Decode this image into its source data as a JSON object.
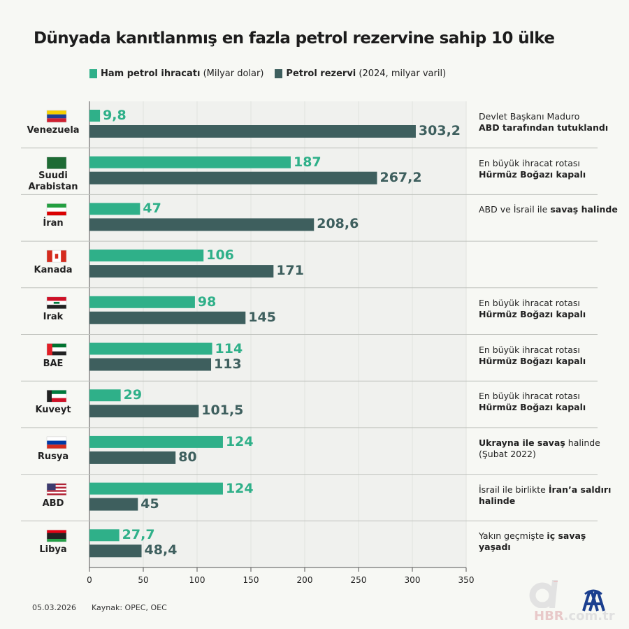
{
  "title": "Dünyada kanıtlanmış en fazla petrol rezervine sahip 10 ülke",
  "legend": [
    {
      "bold": "Ham petrol ihracatı",
      "rest": " (Milyar dolar)",
      "color": "#2fb089"
    },
    {
      "bold": "Petrol rezervi",
      "rest": " (2024, milyar varil)",
      "color": "#3e5f5e"
    }
  ],
  "chart_data": {
    "type": "bar",
    "orientation": "horizontal",
    "categories": [
      "Venezuela",
      "Suudi Arabistan",
      "İran",
      "Kanada",
      "Irak",
      "BAE",
      "Kuveyt",
      "Rusya",
      "ABD",
      "Libya"
    ],
    "series": [
      {
        "name": "Ham petrol ihracatı (Milyar dolar)",
        "color": "#2fb089",
        "values": [
          9.8,
          187,
          47,
          106,
          98,
          114,
          29,
          124,
          124,
          27.7
        ],
        "labels": [
          "9,8",
          "187",
          "47",
          "106",
          "98",
          "114",
          "29",
          "124",
          "124",
          "27,7"
        ]
      },
      {
        "name": "Petrol rezervi (2024, milyar varil)",
        "color": "#3e5f5e",
        "values": [
          303.2,
          267.2,
          208.6,
          171,
          145,
          113,
          101.5,
          80,
          45,
          48.4
        ],
        "labels": [
          "303,2",
          "267,2",
          "208,6",
          "171",
          "145",
          "113",
          "101,5",
          "80",
          "45",
          "48,4"
        ]
      }
    ],
    "xlim": [
      0,
      350
    ],
    "xticks": [
      "0",
      "50",
      "100",
      "150",
      "200",
      "250",
      "300",
      "350"
    ],
    "grid": true,
    "legend_position": "top"
  },
  "flags": [
    "venezuela-flag",
    "saudi-arabia-flag",
    "iran-flag",
    "canada-flag",
    "iraq-flag",
    "uae-flag",
    "kuwait-flag",
    "russia-flag",
    "usa-flag",
    "libya-flag"
  ],
  "notes": [
    [
      {
        "t": "Devlet Başkanı Maduro",
        "b": false
      },
      {
        "t": "\n",
        "b": false
      },
      {
        "t": "ABD tarafından tutuklandı",
        "b": true
      }
    ],
    [
      {
        "t": "En büyük ihracat rotası",
        "b": false
      },
      {
        "t": "\n",
        "b": false
      },
      {
        "t": "Hürmüz Boğazı kapalı",
        "b": true
      }
    ],
    [
      {
        "t": "ABD ve İsrail ile ",
        "b": false
      },
      {
        "t": "savaş halinde",
        "b": true
      }
    ],
    [],
    [
      {
        "t": "En büyük ihracat rotası",
        "b": false
      },
      {
        "t": "\n",
        "b": false
      },
      {
        "t": "Hürmüz Boğazı kapalı",
        "b": true
      }
    ],
    [
      {
        "t": "En büyük ihracat rotası",
        "b": false
      },
      {
        "t": "\n",
        "b": false
      },
      {
        "t": "Hürmüz Boğazı kapalı",
        "b": true
      }
    ],
    [
      {
        "t": "En büyük ihracat rotası",
        "b": false
      },
      {
        "t": "\n",
        "b": false
      },
      {
        "t": "Hürmüz Boğazı kapalı",
        "b": true
      }
    ],
    [
      {
        "t": "Ukrayna ile savaş",
        "b": true
      },
      {
        "t": " halinde (Şubat 2022)",
        "b": false
      }
    ],
    [
      {
        "t": "İsrail ile birlikte ",
        "b": false
      },
      {
        "t": "İran’a saldırı halinde",
        "b": true
      }
    ],
    [
      {
        "t": "Yakın geçmişte ",
        "b": false
      },
      {
        "t": "iç savaş yaşadı",
        "b": true
      }
    ]
  ],
  "footer": {
    "date": "05.03.2026",
    "source": "Kaynak: OPEC, OEC"
  },
  "logos": {
    "ahaber": "a HBR.com.tr",
    "aa": "AA"
  }
}
